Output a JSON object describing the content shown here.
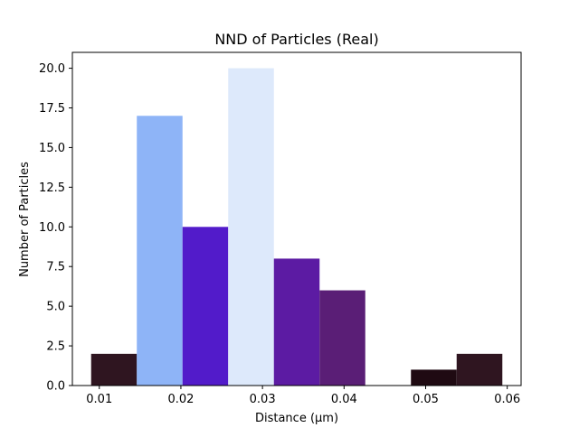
{
  "chart_data": {
    "type": "bar",
    "title": "NND of Particles (Real)",
    "xlabel": "Distance (μm)",
    "ylabel": "Number of Particles",
    "xlim": [
      0.0067,
      0.0617
    ],
    "ylim": [
      0,
      21
    ],
    "grid": false,
    "bin_width": 0.0056,
    "bars": [
      {
        "x_start": 0.009,
        "x_end": 0.0146,
        "value": 2,
        "color": "#2f1520"
      },
      {
        "x_start": 0.0146,
        "x_end": 0.0202,
        "value": 17,
        "color": "#8eb4f7"
      },
      {
        "x_start": 0.0202,
        "x_end": 0.0258,
        "value": 10,
        "color": "#521bca"
      },
      {
        "x_start": 0.0258,
        "x_end": 0.0314,
        "value": 20,
        "color": "#dde9fb"
      },
      {
        "x_start": 0.0314,
        "x_end": 0.037,
        "value": 8,
        "color": "#5c1ba3"
      },
      {
        "x_start": 0.037,
        "x_end": 0.0426,
        "value": 6,
        "color": "#5a1e76"
      },
      {
        "x_start": 0.0426,
        "x_end": 0.0482,
        "value": 0,
        "color": "#ffffff"
      },
      {
        "x_start": 0.0482,
        "x_end": 0.0538,
        "value": 1,
        "color": "#1f0a12"
      },
      {
        "x_start": 0.0538,
        "x_end": 0.0594,
        "value": 2,
        "color": "#2f1520"
      }
    ],
    "xticks": [
      {
        "value": 0.01,
        "label": "0.01"
      },
      {
        "value": 0.02,
        "label": "0.02"
      },
      {
        "value": 0.03,
        "label": "0.03"
      },
      {
        "value": 0.04,
        "label": "0.04"
      },
      {
        "value": 0.05,
        "label": "0.05"
      },
      {
        "value": 0.06,
        "label": "0.06"
      }
    ],
    "yticks": [
      {
        "value": 0.0,
        "label": "0.0"
      },
      {
        "value": 2.5,
        "label": "2.5"
      },
      {
        "value": 5.0,
        "label": "5.0"
      },
      {
        "value": 7.5,
        "label": "7.5"
      },
      {
        "value": 10.0,
        "label": "10.0"
      },
      {
        "value": 12.5,
        "label": "12.5"
      },
      {
        "value": 15.0,
        "label": "15.0"
      },
      {
        "value": 17.5,
        "label": "17.5"
      },
      {
        "value": 20.0,
        "label": "20.0"
      }
    ]
  }
}
